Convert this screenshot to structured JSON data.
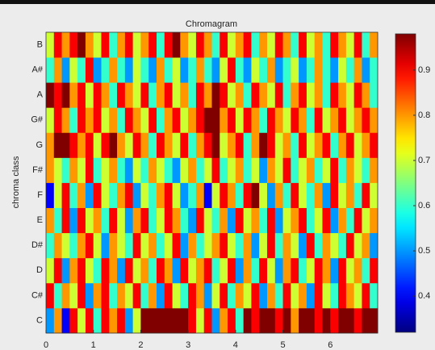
{
  "chart_data": {
    "type": "heatmap",
    "title": "Chromagram",
    "y_label": "chroma class",
    "categories": [
      "C",
      "C#",
      "D",
      "D#",
      "E",
      "F",
      "F#",
      "G",
      "G#",
      "A",
      "A#",
      "B"
    ],
    "xlim": [
      0,
      7
    ],
    "xticks": [
      0,
      1,
      2,
      3,
      4,
      5,
      6
    ],
    "colormap": "jet",
    "clim": [
      0.32,
      0.98
    ],
    "cticks": [
      0.4,
      0.5,
      0.6,
      0.7,
      0.8,
      0.9
    ],
    "z": [
      [
        0.5,
        0.8,
        0.4,
        0.9,
        0.7,
        0.9,
        0.6,
        0.9,
        0.8,
        0.9,
        0.5,
        0.7,
        1.0,
        1.0,
        1.0,
        1.0,
        1.0,
        1.0,
        0.9,
        0.7,
        0.9,
        0.5,
        0.8,
        0.9,
        0.6,
        1.0,
        0.9,
        1.0,
        1.0,
        0.9,
        1.0,
        0.8,
        1.0,
        1.0,
        0.9,
        1.0,
        0.9,
        1.0,
        1.0,
        0.9,
        1.0,
        1.0
      ],
      [
        0.9,
        0.6,
        0.8,
        0.7,
        0.9,
        0.5,
        0.8,
        0.9,
        0.6,
        0.8,
        0.7,
        0.9,
        0.6,
        0.8,
        0.5,
        0.9,
        0.7,
        0.6,
        0.9,
        0.8,
        0.5,
        0.7,
        0.9,
        0.6,
        0.8,
        0.7,
        0.9,
        0.5,
        0.8,
        0.6,
        0.9,
        0.7,
        0.8,
        0.5,
        0.9,
        0.7,
        0.6,
        0.9,
        0.8,
        0.7,
        0.9,
        0.6
      ],
      [
        0.7,
        0.9,
        0.5,
        0.8,
        0.9,
        0.7,
        0.6,
        0.9,
        0.8,
        0.5,
        0.9,
        0.7,
        0.8,
        0.6,
        0.9,
        0.8,
        0.5,
        0.9,
        0.7,
        0.8,
        0.9,
        0.6,
        0.7,
        0.9,
        0.5,
        0.8,
        0.6,
        0.9,
        0.7,
        0.5,
        0.8,
        0.9,
        0.6,
        0.7,
        0.9,
        0.8,
        0.5,
        0.9,
        0.7,
        0.8,
        0.6,
        0.9
      ],
      [
        0.6,
        0.8,
        0.7,
        0.6,
        0.8,
        0.9,
        0.7,
        0.5,
        0.8,
        0.7,
        0.6,
        0.9,
        0.7,
        0.8,
        0.6,
        0.7,
        0.9,
        0.5,
        0.8,
        0.6,
        0.7,
        0.8,
        0.9,
        0.7,
        0.6,
        0.8,
        0.5,
        0.7,
        0.9,
        0.6,
        0.8,
        0.7,
        0.5,
        0.9,
        0.6,
        0.8,
        0.7,
        0.6,
        0.9,
        0.7,
        0.8,
        0.5
      ],
      [
        0.8,
        0.6,
        0.9,
        0.5,
        0.9,
        0.7,
        0.8,
        0.6,
        0.9,
        0.7,
        0.5,
        0.8,
        0.9,
        0.6,
        0.7,
        0.9,
        0.8,
        0.6,
        0.5,
        0.9,
        0.7,
        0.6,
        0.8,
        0.5,
        0.9,
        0.7,
        0.8,
        0.6,
        0.9,
        0.5,
        0.7,
        0.8,
        0.9,
        0.6,
        0.7,
        0.9,
        0.5,
        0.8,
        0.6,
        0.9,
        0.7,
        0.8
      ],
      [
        0.4,
        0.7,
        0.9,
        0.6,
        0.8,
        0.5,
        0.9,
        0.7,
        0.6,
        0.8,
        0.9,
        0.5,
        0.7,
        0.6,
        0.8,
        0.9,
        0.7,
        0.5,
        0.6,
        0.8,
        0.4,
        0.7,
        0.9,
        0.8,
        0.6,
        0.9,
        1.0,
        0.7,
        0.5,
        0.8,
        0.6,
        0.9,
        0.7,
        0.6,
        0.8,
        0.5,
        0.9,
        0.7,
        0.8,
        0.6,
        0.9,
        0.7
      ],
      [
        0.8,
        0.7,
        0.6,
        0.8,
        0.7,
        0.9,
        0.6,
        0.7,
        0.8,
        0.6,
        0.5,
        0.7,
        0.6,
        0.8,
        0.7,
        0.6,
        0.5,
        0.7,
        0.8,
        0.6,
        0.7,
        0.9,
        0.6,
        0.7,
        0.8,
        0.6,
        0.7,
        0.5,
        0.8,
        0.7,
        0.9,
        0.6,
        0.7,
        0.8,
        0.6,
        0.7,
        0.9,
        0.6,
        0.8,
        0.7,
        0.6,
        0.8
      ],
      [
        0.8,
        1.0,
        1.0,
        0.9,
        0.8,
        0.9,
        0.7,
        0.9,
        1.0,
        0.8,
        0.7,
        0.9,
        0.8,
        0.6,
        0.9,
        0.8,
        0.7,
        0.9,
        0.6,
        0.8,
        0.9,
        1.0,
        0.7,
        0.8,
        0.9,
        0.6,
        0.8,
        1.0,
        0.9,
        0.7,
        0.8,
        0.6,
        0.9,
        0.7,
        0.8,
        0.9,
        0.6,
        0.8,
        0.9,
        0.7,
        0.8,
        0.9
      ],
      [
        0.7,
        0.9,
        0.8,
        0.6,
        0.9,
        0.8,
        0.9,
        0.7,
        0.8,
        0.6,
        0.9,
        0.8,
        0.7,
        0.9,
        0.6,
        0.8,
        0.9,
        0.7,
        0.8,
        0.9,
        1.0,
        1.0,
        0.8,
        0.9,
        0.7,
        0.9,
        0.8,
        0.6,
        0.9,
        0.8,
        0.7,
        0.9,
        0.8,
        0.6,
        0.9,
        0.7,
        0.8,
        0.9,
        0.7,
        0.8,
        0.9,
        0.8
      ],
      [
        1.0,
        0.9,
        1.0,
        0.8,
        0.9,
        0.7,
        0.9,
        0.8,
        0.6,
        0.9,
        0.8,
        0.7,
        0.9,
        0.6,
        0.8,
        0.9,
        0.7,
        0.8,
        0.6,
        0.9,
        0.8,
        1.0,
        0.9,
        0.7,
        0.8,
        0.6,
        0.9,
        0.8,
        0.7,
        0.9,
        0.6,
        0.8,
        0.9,
        0.7,
        0.8,
        0.6,
        0.9,
        0.8,
        0.7,
        0.9,
        0.8,
        0.6
      ],
      [
        0.6,
        0.8,
        0.5,
        0.7,
        0.6,
        0.9,
        0.5,
        0.6,
        0.8,
        0.6,
        0.5,
        0.7,
        0.6,
        0.5,
        0.8,
        0.6,
        0.7,
        0.5,
        0.6,
        0.8,
        0.6,
        0.5,
        0.7,
        0.9,
        0.6,
        0.5,
        0.7,
        0.6,
        0.8,
        0.5,
        0.6,
        0.7,
        0.5,
        0.6,
        0.8,
        0.6,
        0.5,
        0.7,
        0.6,
        0.8,
        0.5,
        0.6
      ],
      [
        0.7,
        0.9,
        0.8,
        0.9,
        1.0,
        0.8,
        0.7,
        0.9,
        0.6,
        0.8,
        0.9,
        0.7,
        0.8,
        0.9,
        0.6,
        0.9,
        1.0,
        0.8,
        0.7,
        0.9,
        0.8,
        0.6,
        0.9,
        0.7,
        0.8,
        0.9,
        0.6,
        0.8,
        0.7,
        0.9,
        0.8,
        0.6,
        0.9,
        0.7,
        0.8,
        0.6,
        0.9,
        0.8,
        0.7,
        0.9,
        0.6,
        0.8
      ]
    ]
  }
}
